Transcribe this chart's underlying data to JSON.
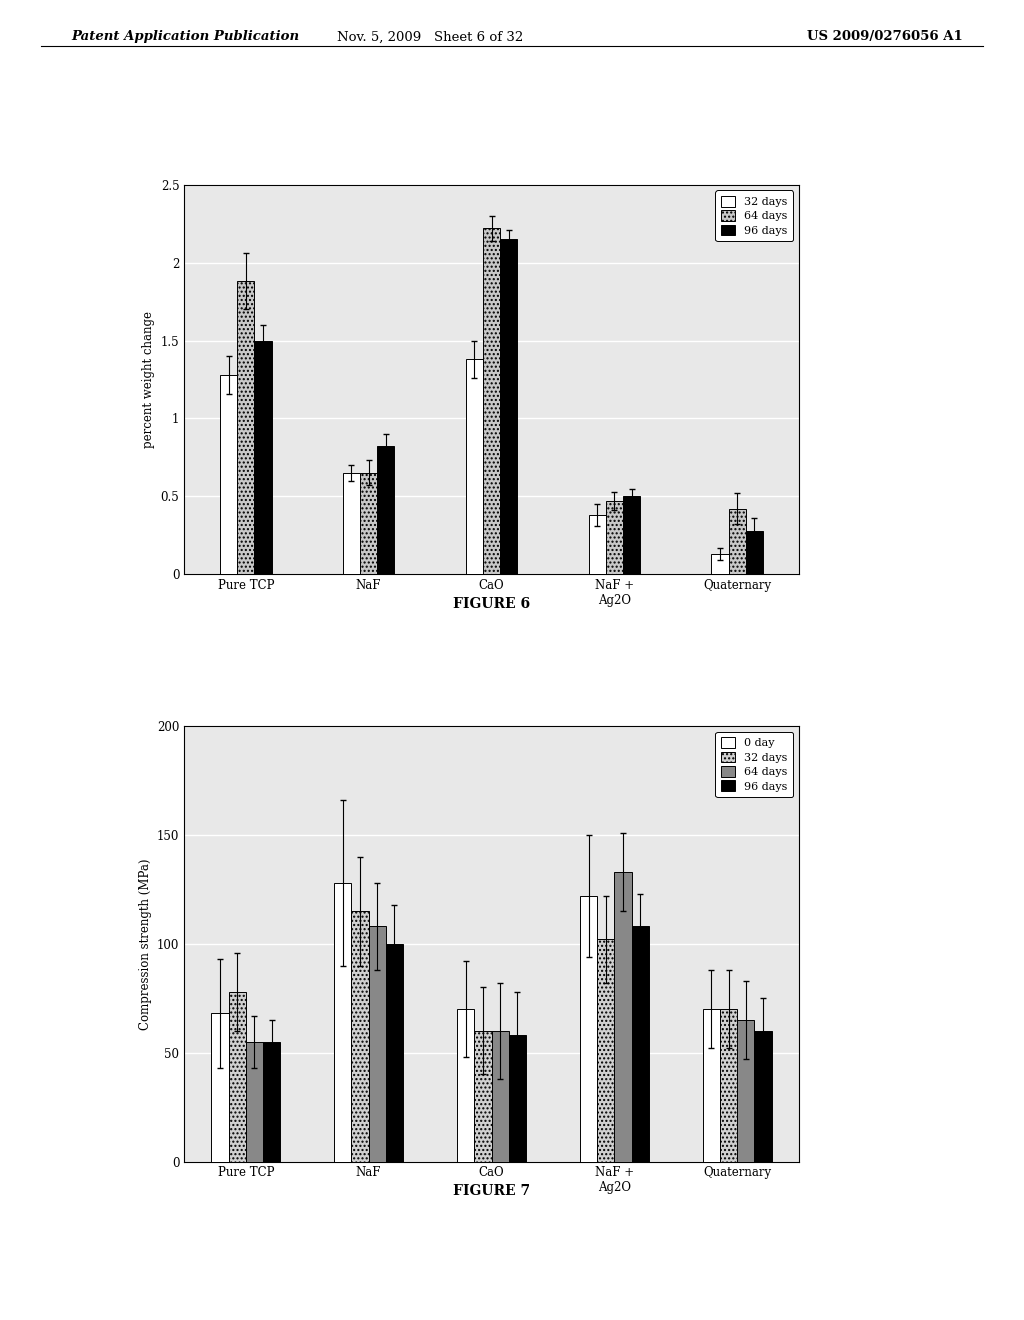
{
  "fig6": {
    "title": "FIGURE 6",
    "ylabel": "percent weight change",
    "categories": [
      "Pure TCP",
      "NaF",
      "CaO",
      "NaF +\nAg2O",
      "Quaternary"
    ],
    "series": [
      {
        "label": "32 days",
        "color": "white",
        "hatch": "",
        "values": [
          1.28,
          0.65,
          1.38,
          0.38,
          0.13
        ],
        "errors": [
          0.12,
          0.05,
          0.12,
          0.07,
          0.04
        ]
      },
      {
        "label": "64 days",
        "color": "#c8c8c8",
        "hatch": "....",
        "values": [
          1.88,
          0.65,
          2.22,
          0.47,
          0.42
        ],
        "errors": [
          0.18,
          0.08,
          0.08,
          0.06,
          0.1
        ]
      },
      {
        "label": "96 days",
        "color": "black",
        "hatch": "",
        "values": [
          1.5,
          0.82,
          2.15,
          0.5,
          0.28
        ],
        "errors": [
          0.1,
          0.08,
          0.06,
          0.05,
          0.08
        ]
      }
    ],
    "ylim": [
      0,
      2.5
    ],
    "yticks": [
      0,
      0.5,
      1.0,
      1.5,
      2.0,
      2.5
    ],
    "yticklabels": [
      "0",
      "0.5",
      "1",
      "1.5",
      "2",
      "2.5"
    ]
  },
  "fig7": {
    "title": "FIGURE 7",
    "ylabel": "Compression strength (MPa)",
    "categories": [
      "Pure TCP",
      "NaF",
      "CaO",
      "NaF +\nAg2O",
      "Quaternary"
    ],
    "series": [
      {
        "label": "0 day",
        "color": "white",
        "hatch": "",
        "values": [
          68,
          128,
          70,
          122,
          70
        ],
        "errors": [
          25,
          38,
          22,
          28,
          18
        ]
      },
      {
        "label": "32 days",
        "color": "#d0d0d0",
        "hatch": "....",
        "values": [
          78,
          115,
          60,
          102,
          70
        ],
        "errors": [
          18,
          25,
          20,
          20,
          18
        ]
      },
      {
        "label": "64 days",
        "color": "#888888",
        "hatch": "",
        "values": [
          55,
          108,
          60,
          133,
          65
        ],
        "errors": [
          12,
          20,
          22,
          18,
          18
        ]
      },
      {
        "label": "96 days",
        "color": "black",
        "hatch": "",
        "values": [
          55,
          100,
          58,
          108,
          60
        ],
        "errors": [
          10,
          18,
          20,
          15,
          15
        ]
      }
    ],
    "ylim": [
      0,
      200
    ],
    "yticks": [
      0,
      50,
      100,
      150,
      200
    ],
    "yticklabels": [
      "0",
      "50",
      "100",
      "150",
      "200"
    ]
  },
  "header_left": "Patent Application Publication",
  "header_mid": "Nov. 5, 2009   Sheet 6 of 32",
  "header_right": "US 2009/0276056 A1",
  "background_color": "#ffffff",
  "plot_bg_color": "#e8e8e8",
  "grid_color": "#ffffff"
}
